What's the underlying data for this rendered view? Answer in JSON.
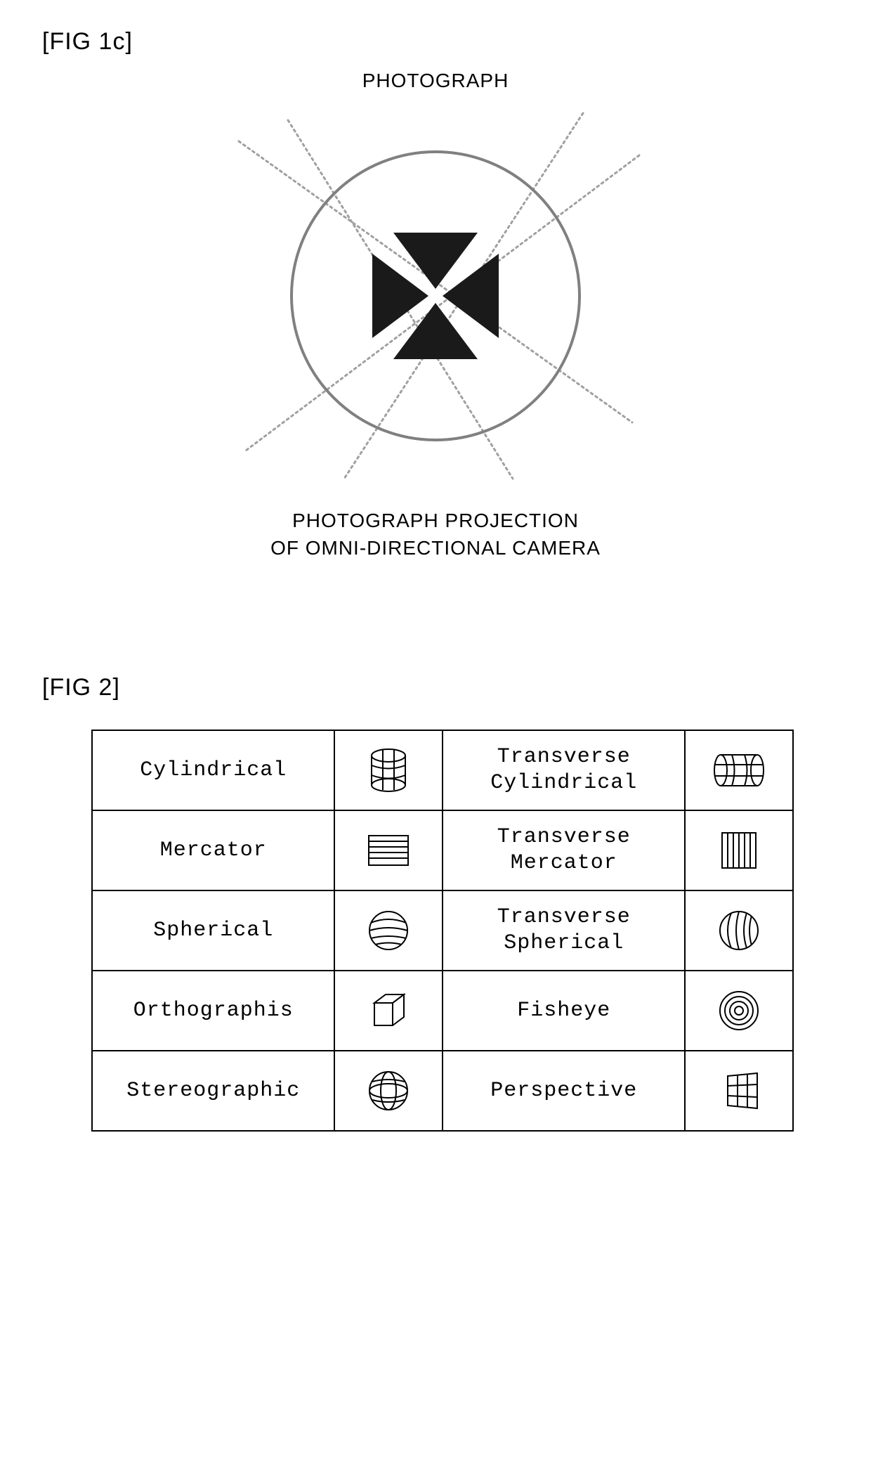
{
  "fig1c": {
    "label": "[FIG 1c]",
    "top_text": "PHOTOGRAPH",
    "bottom_text_1": "PHOTOGRAPH PROJECTION",
    "bottom_text_2": "OF OMNI-DIRECTIONAL CAMERA",
    "circle_stroke": "#808080",
    "ray_stroke": "#a0a0a0",
    "cross_fill": "#1a1a1a"
  },
  "fig2": {
    "label": "[FIG 2]",
    "border_color": "#000000",
    "font": "Courier New",
    "cell_fontsize": 30,
    "rows": [
      {
        "left": "Cylindrical",
        "left_icon": "cylinder-v",
        "right": "Transverse\nCylindrical",
        "right_icon": "cylinder-h"
      },
      {
        "left": "Mercator",
        "left_icon": "mercator",
        "right": "Transverse\nMercator",
        "right_icon": "mercator-v"
      },
      {
        "left": "Spherical",
        "left_icon": "sphere-h",
        "right": "Transverse\nSpherical",
        "right_icon": "sphere-v"
      },
      {
        "left": "Orthographis",
        "left_icon": "cube",
        "right": "Fisheye",
        "right_icon": "fisheye"
      },
      {
        "left": "Stereographic",
        "left_icon": "stereographic",
        "right": "Perspective",
        "right_icon": "perspective"
      }
    ]
  }
}
